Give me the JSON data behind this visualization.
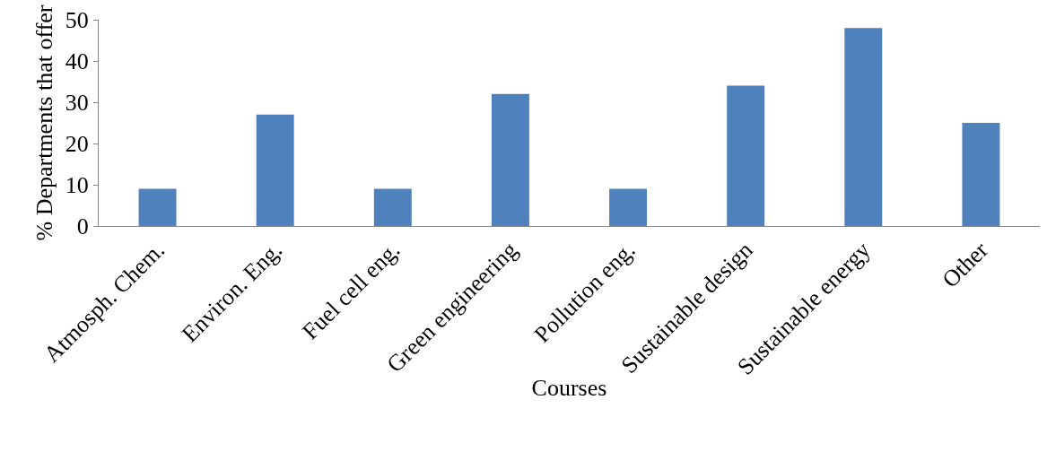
{
  "chart_data": {
    "type": "bar",
    "xlabel": "Courses",
    "ylabel": "% Departments that offer",
    "categories": [
      "Atmosph. Chem.",
      "Environ. Eng.",
      "Fuel cell eng.",
      "Green engineering",
      "Pollution eng.",
      "Sustainable design",
      "Sustainable energy",
      "Other"
    ],
    "values": [
      9,
      27,
      9,
      32,
      9,
      34,
      48,
      25
    ],
    "color": "#4f81bd",
    "ylim": [
      0,
      50
    ],
    "yticks": [
      0,
      10,
      20,
      30,
      40,
      50
    ]
  }
}
